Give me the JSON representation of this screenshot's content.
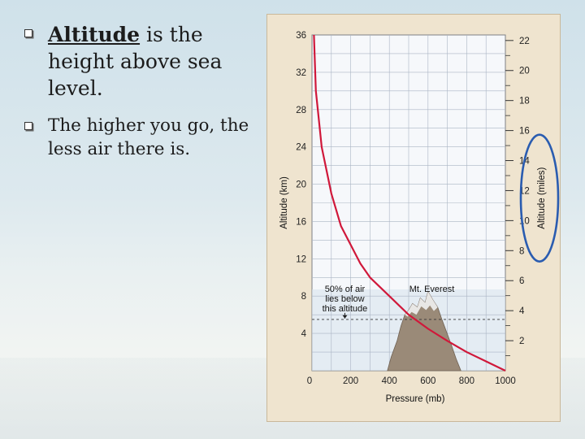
{
  "bullets": [
    {
      "lead": "Altitude",
      "rest": " is the height above sea level."
    },
    {
      "text": "The higher you go, the less air there is."
    }
  ],
  "colors": {
    "curve": "#d0183a",
    "oval": "#2a5cb0",
    "panel": "#efe4cf",
    "plot": "#f6f8fb",
    "grid": "#aab4c4"
  },
  "chart_data": {
    "type": "line",
    "xlabel": "Pressure (mb)",
    "ylabel": "Altitude (km)",
    "y2label": "Altitude (miles)",
    "xlim": [
      0,
      1000
    ],
    "ylim": [
      0,
      36
    ],
    "x_ticks": [
      0,
      200,
      400,
      600,
      800,
      1000
    ],
    "y_ticks": [
      4,
      8,
      12,
      16,
      20,
      24,
      28,
      32,
      36
    ],
    "y2_ticks": [
      2,
      4,
      6,
      8,
      10,
      12,
      14,
      16,
      18,
      20,
      22
    ],
    "series": [
      {
        "x": [
          10,
          20,
          30,
          50,
          70,
          100,
          150,
          200,
          250,
          300,
          400,
          500,
          600,
          700,
          800,
          900,
          1000
        ],
        "y": [
          36,
          30,
          28,
          24,
          22,
          19,
          15.5,
          13.5,
          11.5,
          10,
          8,
          6,
          4.5,
          3.2,
          2,
          1,
          0
        ]
      }
    ],
    "annotations": [
      {
        "label": "50% of air lies below this altitude",
        "lines": [
          "50% of air",
          "lies below",
          "this altitude"
        ],
        "y": 5.5
      },
      {
        "label": "Mt. Everest",
        "x": 620,
        "y": 8.8
      }
    ]
  }
}
